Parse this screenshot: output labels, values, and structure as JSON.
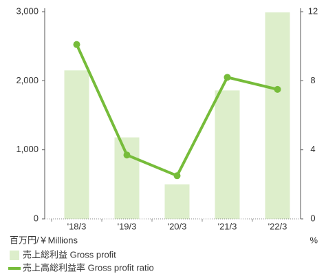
{
  "chart_data": {
    "type": "bar",
    "categories": [
      "'18/3",
      "'19/3",
      "'20/3",
      "'21/3",
      "'22/3"
    ],
    "series": [
      {
        "name": "売上総利益 Gross profit",
        "type": "bar",
        "color": "#ddeecb",
        "values": [
          2150,
          1180,
          500,
          1860,
          2990
        ]
      },
      {
        "name": "売上高総利益率 Gross profit ratio",
        "type": "line",
        "axis": "y2",
        "color": "#76bc3a",
        "values": [
          10.1,
          3.7,
          2.5,
          8.2,
          7.5
        ]
      }
    ],
    "ylim": [
      0,
      3000
    ],
    "yticks": [
      0,
      {
        "value": 1000,
        "label": "1,000"
      },
      {
        "value": 2000,
        "label": "2,000"
      },
      {
        "value": 3000,
        "label": "3,000"
      }
    ],
    "y2lim": [
      0,
      12
    ],
    "y2ticks": [
      0,
      4,
      8,
      12
    ],
    "ylabel": "百万円/￥Millions",
    "y2label": "%"
  }
}
